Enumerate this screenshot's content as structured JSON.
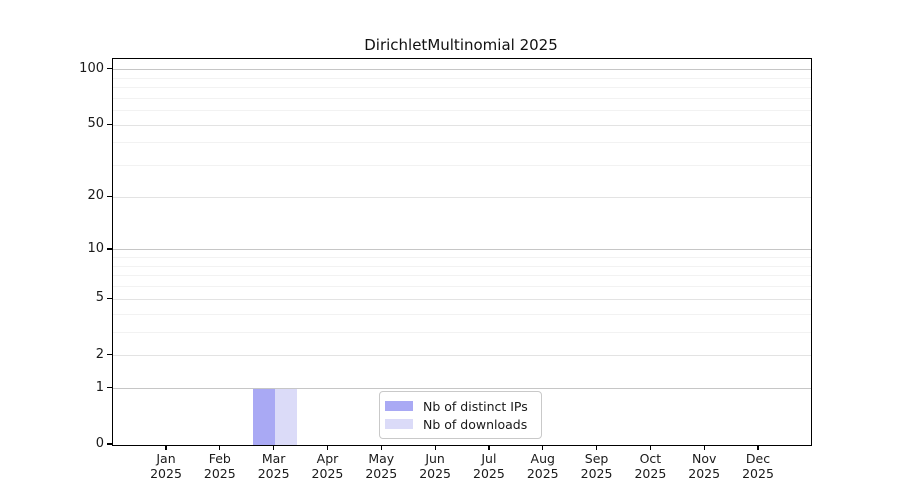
{
  "chart_data": {
    "type": "bar",
    "title": "DirichletMultinomial 2025",
    "categories": [
      "Jan 2025",
      "Feb 2025",
      "Mar 2025",
      "Apr 2025",
      "May 2025",
      "Jun 2025",
      "Jul 2025",
      "Aug 2025",
      "Sep 2025",
      "Oct 2025",
      "Nov 2025",
      "Dec 2025"
    ],
    "series": [
      {
        "name": "Nb of distinct IPs",
        "color": "#a9a9f4",
        "values": [
          0,
          0,
          1,
          0,
          0,
          0,
          0,
          0,
          0,
          0,
          0,
          0
        ]
      },
      {
        "name": "Nb of downloads",
        "color": "#dbdbf8",
        "values": [
          0,
          0,
          1,
          0,
          0,
          0,
          0,
          0,
          0,
          0,
          0,
          0
        ]
      }
    ],
    "xlabel": "",
    "ylabel": "",
    "y_scale": "log1p",
    "ylim": [
      0,
      114
    ],
    "y_major_ticks": [
      0,
      1,
      2,
      5,
      10,
      20,
      50,
      100
    ],
    "y_minor_gridlines": [
      3,
      4,
      6,
      7,
      8,
      9,
      30,
      40,
      60,
      70,
      80,
      90
    ],
    "grid": true,
    "legend_position": "bottom-center"
  },
  "colors": {
    "bar_distinct_ips": "#a9a9f4",
    "bar_downloads": "#dbdbf8",
    "grid_major_dark": "#c6c6c6",
    "grid_major_light": "#e3e3e3",
    "grid_minor": "#f2f2f2",
    "spine": "#000000",
    "text": "#1a1a1a",
    "legend_border": "#c9c9c9",
    "background": "#ffffff"
  }
}
